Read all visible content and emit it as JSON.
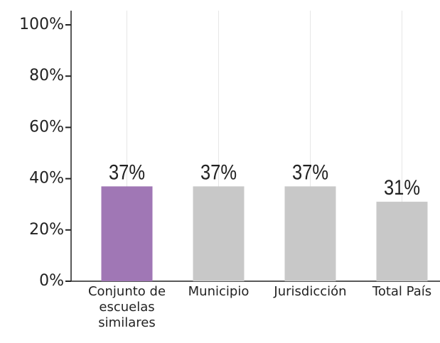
{
  "chart_data": {
    "type": "bar",
    "categories": [
      "Conjunto de escuelas similares",
      "Municipio",
      "Jurisdicción",
      "Total País"
    ],
    "values": [
      37,
      37,
      37,
      31
    ],
    "value_labels": [
      "37%",
      "37%",
      "37%",
      "31%"
    ],
    "colors": [
      "#a077b5",
      "#c8c8c8",
      "#c8c8c8",
      "#c8c8c8"
    ],
    "ylim": [
      0,
      100
    ],
    "yticks": [
      {
        "value": 0,
        "label": "0%"
      },
      {
        "value": 20,
        "label": "20%"
      },
      {
        "value": 40,
        "label": "40%"
      },
      {
        "value": 60,
        "label": "60%"
      },
      {
        "value": 80,
        "label": "80%"
      },
      {
        "value": 100,
        "label": "100%"
      }
    ],
    "grid": true
  }
}
